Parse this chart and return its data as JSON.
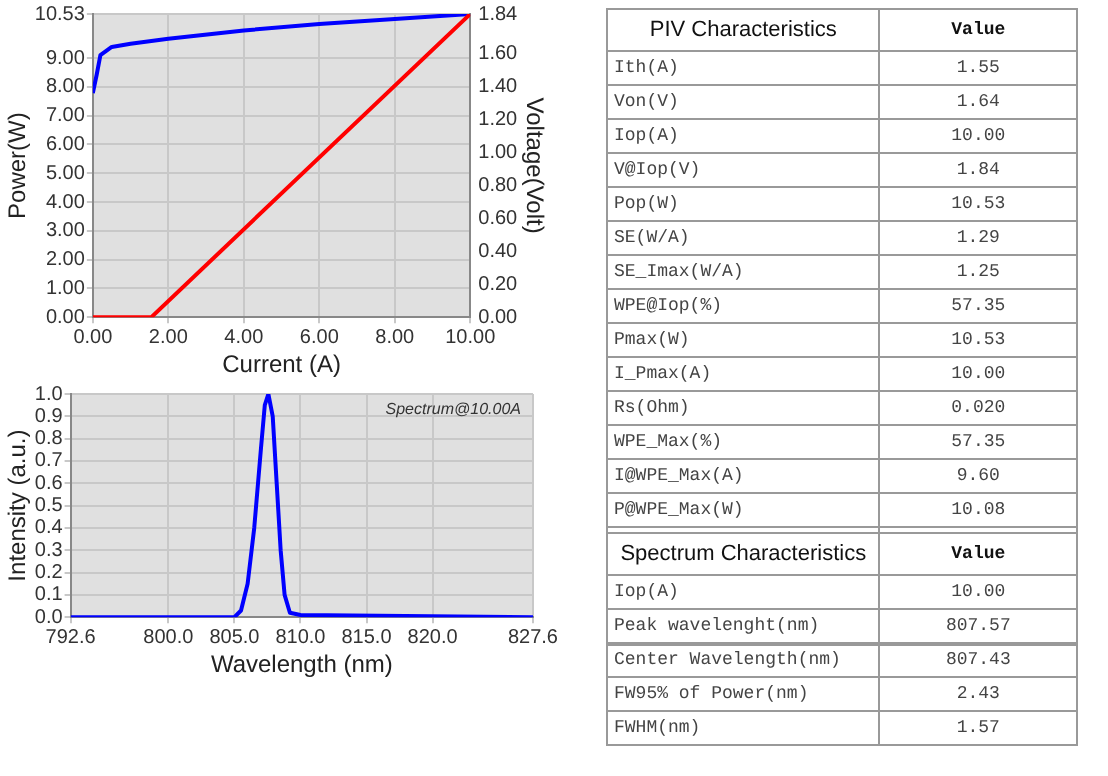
{
  "chart_data": [
    {
      "type": "line",
      "xlabel": "Current (A)",
      "ylabel": "Power(W)",
      "y2label": "Voltage(Volt)",
      "xlim": [
        0,
        10
      ],
      "xticks": [
        {
          "value": 0,
          "label": "0.00"
        },
        {
          "value": 2,
          "label": "2.00"
        },
        {
          "value": 4,
          "label": "4.00"
        },
        {
          "value": 6,
          "label": "6.00"
        },
        {
          "value": 8,
          "label": "8.00"
        },
        {
          "value": 10,
          "label": "10.00"
        }
      ],
      "ylim": [
        0,
        10.53
      ],
      "yticks": [
        {
          "value": 0,
          "label": "0.00"
        },
        {
          "value": 1,
          "label": "1.00"
        },
        {
          "value": 2,
          "label": "2.00"
        },
        {
          "value": 3,
          "label": "3.00"
        },
        {
          "value": 4,
          "label": "4.00"
        },
        {
          "value": 5,
          "label": "5.00"
        },
        {
          "value": 6,
          "label": "6.00"
        },
        {
          "value": 7,
          "label": "7.00"
        },
        {
          "value": 8,
          "label": "8.00"
        },
        {
          "value": 9,
          "label": "9.00"
        },
        10.53
      ],
      "y2lim": [
        0,
        1.84
      ],
      "y2ticks": [
        {
          "value": 0,
          "label": "0.00"
        },
        {
          "value": 0.2,
          "label": "0.20"
        },
        {
          "value": 0.4,
          "label": "0.40"
        },
        {
          "value": 0.6,
          "label": "0.60"
        },
        {
          "value": 0.8,
          "label": "0.80"
        },
        {
          "value": 1,
          "label": "1.00"
        },
        {
          "value": 1.2,
          "label": "1.20"
        },
        {
          "value": 1.4,
          "label": "1.40"
        },
        {
          "value": 1.6,
          "label": "1.60"
        },
        1.84
      ],
      "grid": true,
      "legend": false,
      "marker": "none",
      "line_style": "solid",
      "series": [
        {
          "color": "#ff0000",
          "x": [
            0,
            1.55,
            10
          ],
          "values": [
            0,
            0,
            10.53
          ]
        },
        {
          "color": "#0000ff",
          "axis": "y2",
          "x": [
            0,
            0.1,
            0.2,
            0.5,
            1,
            2,
            4,
            6,
            8,
            10
          ],
          "values": [
            1.36,
            1.47,
            1.59,
            1.64,
            1.66,
            1.69,
            1.74,
            1.78,
            1.81,
            1.84
          ]
        }
      ]
    },
    {
      "type": "line",
      "xlabel": "Wavelength (nm)",
      "ylabel": "Intensity (a.u.)",
      "annotations": [
        "Spectrum@10.00A"
      ],
      "xlim": [
        792.6,
        827.6
      ],
      "xticks": [
        792.6,
        {
          "value": 800,
          "label": "800.0"
        },
        {
          "value": 805,
          "label": "805.0"
        },
        {
          "value": 810,
          "label": "810.0"
        },
        {
          "value": 815,
          "label": "815.0"
        },
        {
          "value": 820,
          "label": "820.0"
        },
        827.6
      ],
      "ylim": [
        0,
        1
      ],
      "yticks": [
        {
          "value": 0,
          "label": "0.0"
        },
        0.1,
        0.2,
        0.3,
        0.4,
        0.5,
        0.6,
        0.7,
        0.8,
        0.9,
        {
          "value": 1,
          "label": "1.0"
        }
      ],
      "grid": true,
      "legend": false,
      "marker": "none",
      "line_style": "solid",
      "series": [
        {
          "color": "#0000ff",
          "x": [
            792.6,
            805,
            805.5,
            806,
            806.5,
            807,
            807.3,
            807.57,
            807.9,
            808.2,
            808.5,
            808.8,
            809.2,
            810,
            827.6
          ],
          "values": [
            0,
            0,
            0.03,
            0.15,
            0.4,
            0.75,
            0.95,
            1,
            0.9,
            0.6,
            0.3,
            0.1,
            0.02,
            0.01,
            0
          ]
        }
      ]
    },
    {
      "type": "other",
      "title": "PIV Characteristics",
      "annotations": [
        "Value"
      ],
      "categories": [
        "Ith(A)",
        "Von(V)",
        "Iop(A)",
        "V@Iop(V)",
        "Pop(W)",
        "SE(W/A)",
        "SE_Imax(W/A)",
        "WPE@Iop(%)",
        "Pmax(W)",
        "I_Pmax(A)",
        "Rs(Ohm)",
        "WPE_Max(%)",
        "I@WPE_Max(A)",
        "P@WPE_Max(W)"
      ],
      "value_labels": [
        "1.55",
        "1.64",
        "10.00",
        "1.84",
        "10.53",
        "1.29",
        "1.25",
        "57.35",
        "10.53",
        "10.00",
        "0.020",
        "57.35",
        "9.60",
        "10.08"
      ]
    },
    {
      "type": "other",
      "title": "Spectrum Characteristics",
      "annotations": [
        "Value"
      ],
      "categories": [
        "Iop(A)",
        "Peak wavelenght(nm)",
        "Center Wavelength(nm)",
        "FW95% of Power(nm)",
        "FWHM(nm)"
      ],
      "value_labels": [
        "10.00",
        "807.57",
        "807.43",
        "2.43",
        "1.57"
      ]
    }
  ]
}
